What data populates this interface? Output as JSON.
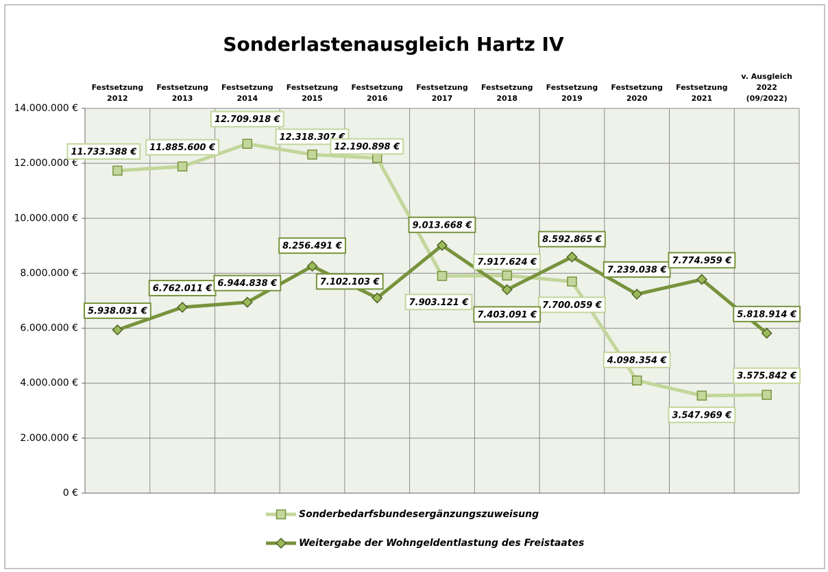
{
  "chart_data": {
    "type": "line",
    "title": "Sonderlastenausgleich Hartz IV",
    "categories": [
      "Festsetzung\n2012",
      "Festsetzung\n2013",
      "Festsetzung\n2014",
      "Festsetzung\n2015",
      "Festsetzung\n2016",
      "Festsetzung\n2017",
      "Festsetzung\n2018",
      "Festsetzung\n2019",
      "Festsetzung\n2020",
      "Festsetzung\n2021",
      "v. Ausgleich\n2022\n(09/2022)"
    ],
    "series": [
      {
        "name": "Sonderbedarfsbundesergänzungszuweisung",
        "color": "#c3d69b",
        "marker": "square",
        "values": [
          11733388,
          11885600,
          12709918,
          12318307,
          12190898,
          7903121,
          7917624,
          7700059,
          4098354,
          3547969,
          3575842
        ],
        "value_labels": [
          "11.733.388 €",
          "11.885.600 €",
          "12.709.918 €",
          "12.318.307 €",
          "12.190.898 €",
          "7.903.121 €",
          "7.917.624 €",
          "7.700.059 €",
          "4.098.354 €",
          "3.547.969 €",
          "3.575.842 €"
        ]
      },
      {
        "name": "Weitergabe der Wohngeldentlastung des Freistaates",
        "color": "#77933c",
        "marker": "diamond",
        "values": [
          5938031,
          6762011,
          6944838,
          8256491,
          7102103,
          9013668,
          7403091,
          8592865,
          7239038,
          7774959,
          5818914
        ],
        "value_labels": [
          "5.938.031 €",
          "6.762.011 €",
          "6.944.838 €",
          "8.256.491 €",
          "7.102.103 €",
          "9.013.668 €",
          "7.403.091 €",
          "8.592.865 €",
          "7.239.038 €",
          "7.774.959 €",
          "5.818.914 €"
        ]
      }
    ],
    "ylim": [
      0,
      14000000
    ],
    "yticks": [
      {
        "value": 0,
        "label": "0 €"
      },
      {
        "value": 2000000,
        "label": "2.000.000 €"
      },
      {
        "value": 4000000,
        "label": "4.000.000 €"
      },
      {
        "value": 6000000,
        "label": "6.000.000 €"
      },
      {
        "value": 8000000,
        "label": "8.000.000 €"
      },
      {
        "value": 10000000,
        "label": "10.000.000 €"
      },
      {
        "value": 12000000,
        "label": "12.000.000 €"
      },
      {
        "value": 14000000,
        "label": "14.000.000 €"
      }
    ],
    "grid": true
  }
}
